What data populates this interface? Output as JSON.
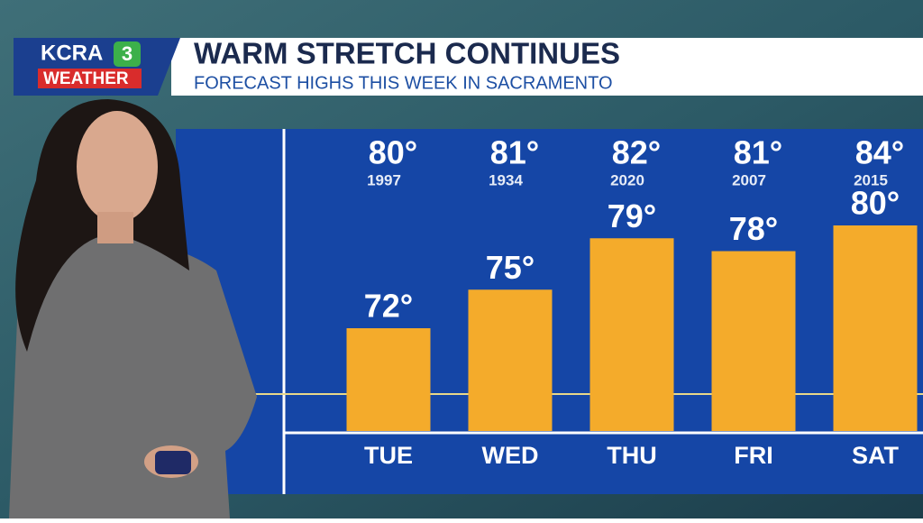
{
  "logo": {
    "station": "KCRA",
    "channel": "3",
    "brand": "WEATHER"
  },
  "chart_data": {
    "type": "bar",
    "title": "WARM STRETCH CONTINUES",
    "subtitle": "FORECAST HIGHS THIS WEEK IN SACRAMENTO",
    "categories": [
      "TUE",
      "WED",
      "THU",
      "FRI",
      "SAT"
    ],
    "values": [
      72,
      75,
      79,
      78,
      80
    ],
    "value_labels": [
      "72°",
      "75°",
      "79°",
      "78°",
      "80°"
    ],
    "color": "#f4ab2b",
    "ylim": [
      64,
      80
    ],
    "records": {
      "values": [
        80,
        81,
        82,
        81,
        84
      ],
      "value_labels": [
        "80°",
        "81°",
        "82°",
        "81°",
        "84°"
      ],
      "years": [
        "1997",
        "1934",
        "2020",
        "2007",
        "2015"
      ]
    }
  }
}
